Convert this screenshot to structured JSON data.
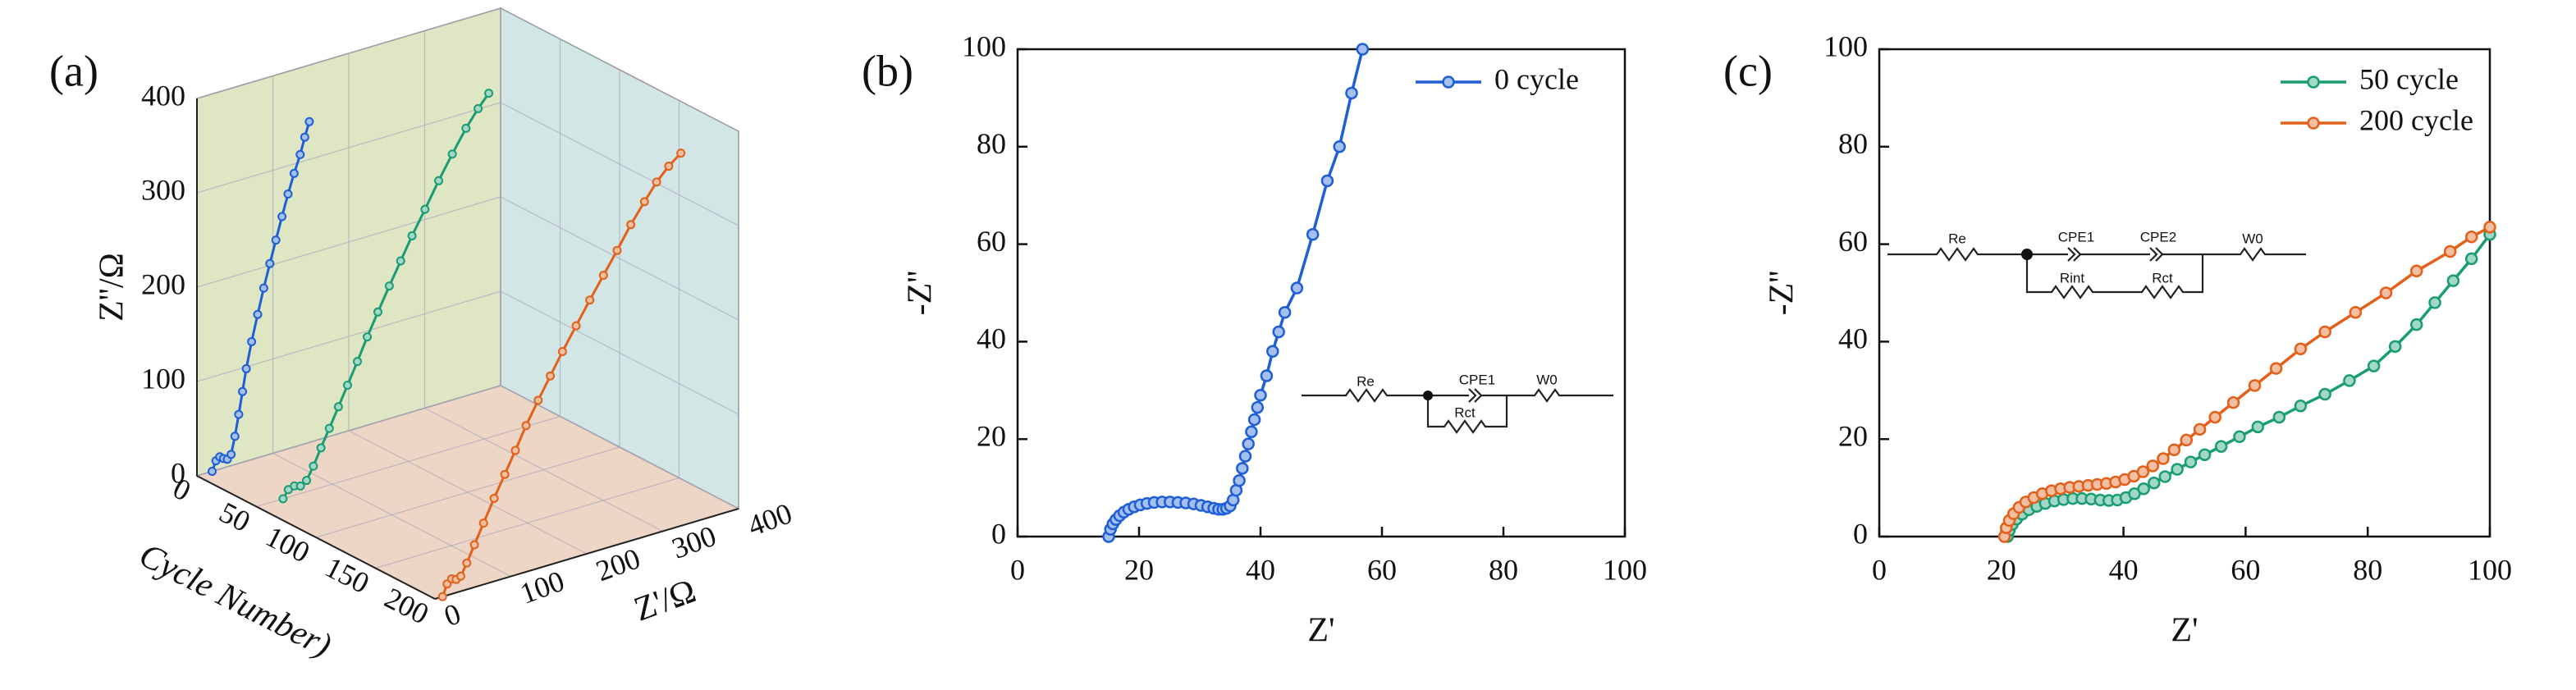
{
  "chart_data": [
    {
      "type": "line3d",
      "label": "(a)",
      "xlabel": "Z'/Ω",
      "ylabel": "Z''/Ω",
      "cycle_label": "Cycle Number)",
      "xlim": [
        0,
        400
      ],
      "xticks": [
        0,
        100,
        200,
        300,
        400
      ],
      "ylim": [
        0,
        400
      ],
      "yticks": [
        0,
        100,
        200,
        300,
        400
      ],
      "cycle_lim": [
        0,
        200
      ],
      "cycle_ticks": [
        0,
        50,
        100,
        150,
        200
      ],
      "wall_colors": [
        "#dfe6c4",
        "#d2e6e6",
        "#eed6c6"
      ],
      "series": [
        {
          "cycle": 0,
          "color": "#1f5fd6",
          "x": [
            20,
            25,
            30,
            35,
            40,
            45,
            50,
            55,
            60,
            65,
            72,
            80,
            88,
            96,
            104,
            112,
            120,
            128,
            136,
            142,
            148
          ],
          "values": [
            0,
            10,
            13,
            10,
            8,
            12,
            30,
            52,
            75,
            98,
            125,
            152,
            178,
            202,
            225,
            248,
            270,
            290,
            308,
            325,
            340
          ]
        },
        {
          "cycle": 50,
          "color": "#1a9c74",
          "x": [
            35,
            42,
            50,
            58,
            66,
            75,
            85,
            96,
            108,
            120,
            133,
            146,
            160,
            175,
            190,
            205,
            222,
            240,
            258,
            276,
            292,
            306
          ],
          "values": [
            0,
            8,
            10,
            8,
            12,
            25,
            42,
            60,
            80,
            100,
            122,
            145,
            168,
            192,
            215,
            238,
            262,
            288,
            312,
            335,
            352,
            365
          ]
        },
        {
          "cycle": 200,
          "color": "#e2601a",
          "x": [
            10,
            16,
            22,
            28,
            34,
            42,
            52,
            64,
            78,
            92,
            106,
            120,
            136,
            152,
            168,
            186,
            204,
            222,
            240,
            258,
            276,
            292,
            308,
            324
          ],
          "values": [
            0,
            12,
            16,
            14,
            16,
            28,
            45,
            65,
            88,
            110,
            132,
            155,
            178,
            200,
            222,
            245,
            268,
            290,
            312,
            335,
            355,
            372,
            385,
            395
          ]
        }
      ]
    },
    {
      "type": "line",
      "label": "(b)",
      "xlabel": "Z'",
      "ylabel": "-Z''",
      "xlim": [
        0,
        100
      ],
      "xticks": [
        0,
        20,
        40,
        60,
        80,
        100
      ],
      "ylim": [
        0,
        100
      ],
      "yticks": [
        0,
        20,
        40,
        60,
        80,
        100
      ],
      "legend": "upper right",
      "annotations": [
        "Re",
        "CPE1",
        "W0",
        "Rct"
      ],
      "series": [
        {
          "name": "0 cycle",
          "color": "#1f5fd6",
          "x": [
            15,
            15.3,
            15.7,
            16.2,
            16.8,
            17.5,
            18.3,
            19.2,
            20.2,
            21.3,
            22.5,
            23.8,
            25.1,
            26.4,
            27.7,
            29,
            30.2,
            31.3,
            32.3,
            33.1,
            33.8,
            34.4,
            35,
            35.5,
            36,
            36.5,
            37,
            37.5,
            38,
            38.5,
            39,
            39.5,
            40,
            41,
            42,
            43,
            44,
            46,
            48.6,
            51,
            53,
            55,
            56.8
          ],
          "values": [
            0,
            1.5,
            2.6,
            3.5,
            4.3,
            5,
            5.6,
            6.1,
            6.5,
            6.8,
            7,
            7.1,
            7.1,
            7,
            6.9,
            6.7,
            6.4,
            6.1,
            5.8,
            5.6,
            5.6,
            5.8,
            6.3,
            7.5,
            9.5,
            11.5,
            14,
            16.5,
            19,
            21.5,
            24,
            26.5,
            29,
            33,
            38,
            42,
            46,
            51,
            62,
            73,
            80,
            91,
            100
          ]
        }
      ]
    },
    {
      "type": "line",
      "label": "(c)",
      "xlabel": "Z'",
      "ylabel": "-Z''",
      "xlim": [
        0,
        100
      ],
      "xticks": [
        0,
        20,
        40,
        60,
        80,
        100
      ],
      "ylim": [
        0,
        100
      ],
      "yticks": [
        0,
        20,
        40,
        60,
        80,
        100
      ],
      "legend": "upper right",
      "annotations": [
        "Re",
        "CPE1",
        "CPE2",
        "W0",
        "Rint",
        "Rct"
      ],
      "series": [
        {
          "name": "50 cycle",
          "color": "#1a9c74",
          "x": [
            21,
            21.3,
            21.8,
            22.5,
            23.4,
            24.5,
            25.8,
            27.2,
            28.7,
            30.2,
            31.7,
            33.2,
            34.7,
            36.2,
            37.6,
            39,
            40.4,
            41.8,
            43.3,
            45,
            46.8,
            48.8,
            51,
            53.3,
            56,
            59,
            62,
            65.5,
            69,
            73,
            77,
            81,
            84.5,
            88,
            91,
            94,
            97,
            100
          ],
          "values": [
            0,
            1.3,
            2.5,
            3.6,
            4.6,
            5.5,
            6.2,
            6.8,
            7.3,
            7.6,
            7.8,
            7.8,
            7.7,
            7.5,
            7.4,
            7.5,
            8,
            8.8,
            9.8,
            11,
            12.3,
            13.8,
            15.3,
            16.8,
            18.5,
            20.5,
            22.5,
            24.5,
            26.8,
            29.2,
            32,
            35,
            39,
            43.5,
            48,
            52.5,
            57,
            62
          ]
        },
        {
          "name": "200 cycle",
          "color": "#e2601a",
          "x": [
            20.5,
            20.8,
            21.3,
            22,
            22.9,
            24,
            25.3,
            26.7,
            28.2,
            29.7,
            31.2,
            32.7,
            34.2,
            35.7,
            37.2,
            38.7,
            40.2,
            41.7,
            43.2,
            44.8,
            46.5,
            48.3,
            50.3,
            52.5,
            55,
            58,
            61.5,
            65,
            69,
            73,
            78,
            83,
            88,
            93.5,
            97,
            100
          ],
          "values": [
            0,
            1.8,
            3.3,
            4.7,
            6,
            7.1,
            8,
            8.8,
            9.4,
            9.8,
            10.1,
            10.3,
            10.5,
            10.7,
            10.9,
            11.2,
            11.7,
            12.4,
            13.3,
            14.5,
            16,
            17.8,
            19.8,
            22,
            24.5,
            27.5,
            31,
            34.5,
            38.5,
            42,
            46,
            50,
            54.5,
            58.5,
            61.5,
            63.5
          ]
        }
      ]
    }
  ]
}
